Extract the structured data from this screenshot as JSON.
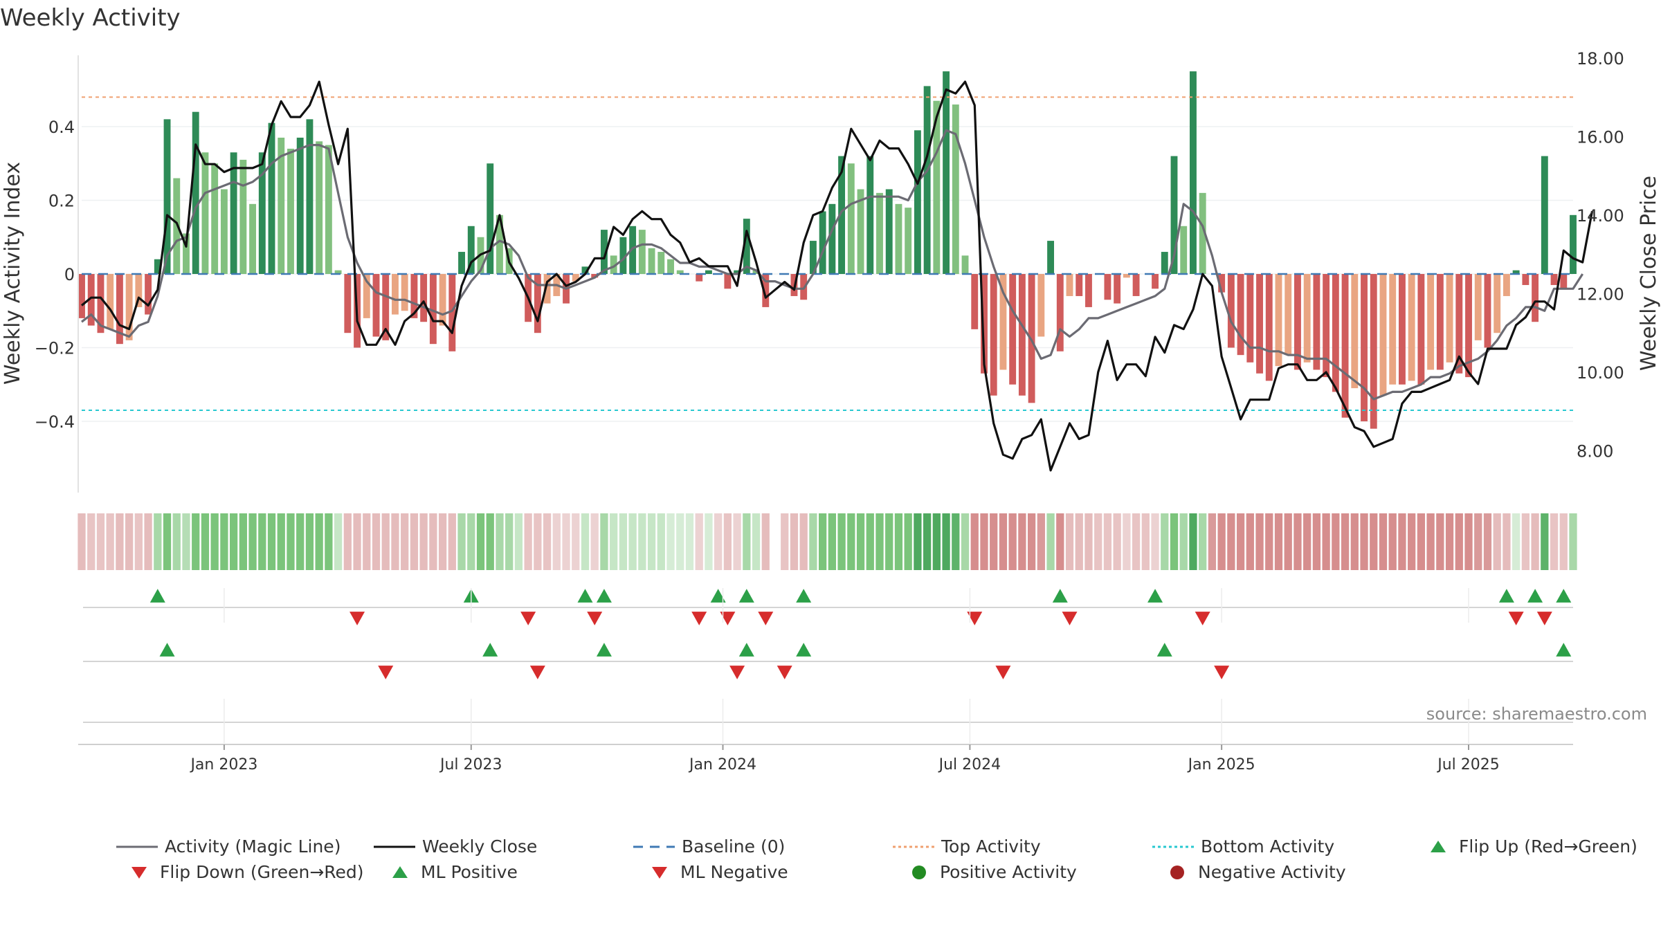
{
  "chart_data": {
    "type": "bar+line",
    "title": "Weekly Activity",
    "ylabel_left": "Weekly Activity Index",
    "ylabel_right": "Weekly Close Price",
    "source": "source: sharemaestro.com",
    "ylim_left": [
      -0.59,
      0.59
    ],
    "ylim_right": [
      6.8,
      18.0
    ],
    "yticks_left": [
      {
        "v": 0.4,
        "label": "0.4"
      },
      {
        "v": 0.2,
        "label": "0.2"
      },
      {
        "v": 0,
        "label": "0"
      },
      {
        "v": -0.2,
        "label": "−0.2"
      },
      {
        "v": -0.4,
        "label": "−0.4"
      }
    ],
    "yticks_right": [
      {
        "v": 18,
        "label": "18.00"
      },
      {
        "v": 16,
        "label": "16.00"
      },
      {
        "v": 14,
        "label": "14.00"
      },
      {
        "v": 12,
        "label": "12.00"
      },
      {
        "v": 10,
        "label": "10.00"
      },
      {
        "v": 8,
        "label": "8.00"
      }
    ],
    "x_range_weeks": [
      0,
      157
    ],
    "xticks": [
      {
        "w": 15,
        "label": "Jan 2023"
      },
      {
        "w": 41,
        "label": "Jul 2023"
      },
      {
        "w": 67.5,
        "label": "Jan 2024"
      },
      {
        "w": 93.5,
        "label": "Jul 2024"
      },
      {
        "w": 120,
        "label": "Jan 2025"
      },
      {
        "w": 146,
        "label": "Jul 2025"
      }
    ],
    "top_activity": 0.48,
    "bottom_activity": -0.37,
    "baseline": 0,
    "activity_values": [
      -0.12,
      -0.14,
      -0.16,
      -0.15,
      -0.19,
      -0.18,
      -0.09,
      -0.11,
      0.04,
      0.42,
      0.26,
      0.11,
      0.44,
      0.33,
      0.3,
      0.23,
      0.33,
      0.31,
      0.19,
      0.33,
      0.41,
      0.37,
      0.34,
      0.37,
      0.42,
      0.36,
      0.35,
      0.01,
      -0.16,
      -0.2,
      -0.12,
      -0.17,
      -0.18,
      -0.11,
      -0.1,
      -0.12,
      -0.13,
      -0.19,
      -0.14,
      -0.21,
      0.06,
      0.13,
      0.1,
      0.3,
      0.16,
      0.07,
      0.0,
      -0.13,
      -0.16,
      -0.08,
      -0.06,
      -0.08,
      -0.02,
      0.02,
      -0.01,
      0.12,
      0.05,
      0.1,
      0.13,
      0.12,
      0.07,
      0.06,
      0.04,
      0.01,
      0.0,
      -0.02,
      0.01,
      0.0,
      -0.04,
      0.01,
      0.15,
      0.01,
      -0.09,
      0.0,
      0.0,
      -0.06,
      -0.07,
      0.09,
      0.17,
      0.19,
      0.32,
      0.3,
      0.23,
      0.32,
      0.22,
      0.23,
      0.19,
      0.18,
      0.39,
      0.51,
      0.47,
      0.55,
      0.46,
      0.05,
      -0.15,
      -0.27,
      -0.33,
      -0.26,
      -0.3,
      -0.33,
      -0.35,
      -0.17,
      0.09,
      -0.21,
      -0.06,
      -0.06,
      -0.09,
      0.0,
      -0.07,
      -0.08,
      -0.01,
      -0.06,
      0.0,
      -0.04,
      0.06,
      0.32,
      0.13,
      0.55,
      0.22,
      0.0,
      -0.05,
      -0.2,
      -0.22,
      -0.24,
      -0.27,
      -0.29,
      -0.25,
      -0.22,
      -0.26,
      -0.24,
      -0.26,
      -0.28,
      -0.32,
      -0.39,
      -0.31,
      -0.4,
      -0.42,
      -0.33,
      -0.3,
      -0.3,
      -0.29,
      -0.3,
      -0.26,
      -0.26,
      -0.24,
      -0.27,
      -0.28,
      -0.18,
      -0.2,
      -0.16,
      -0.06,
      0.01,
      -0.03,
      -0.13,
      0.32,
      -0.03,
      -0.04,
      0.16
    ],
    "magic_line": [
      -0.13,
      -0.11,
      -0.14,
      -0.15,
      -0.16,
      -0.17,
      -0.14,
      -0.13,
      -0.06,
      0.05,
      0.09,
      0.1,
      0.18,
      0.22,
      0.23,
      0.24,
      0.25,
      0.24,
      0.25,
      0.27,
      0.3,
      0.32,
      0.33,
      0.34,
      0.35,
      0.35,
      0.34,
      0.22,
      0.1,
      0.03,
      -0.02,
      -0.05,
      -0.06,
      -0.07,
      -0.07,
      -0.08,
      -0.09,
      -0.1,
      -0.11,
      -0.1,
      -0.06,
      -0.02,
      0.01,
      0.07,
      0.09,
      0.08,
      0.05,
      -0.01,
      -0.03,
      -0.03,
      -0.03,
      -0.04,
      -0.03,
      -0.02,
      -0.01,
      0.01,
      0.02,
      0.04,
      0.07,
      0.08,
      0.08,
      0.07,
      0.05,
      0.03,
      0.03,
      0.02,
      0.02,
      0.01,
      0.0,
      0.0,
      0.02,
      0.01,
      -0.02,
      -0.02,
      -0.03,
      -0.04,
      -0.04,
      0.0,
      0.06,
      0.12,
      0.17,
      0.19,
      0.2,
      0.21,
      0.21,
      0.21,
      0.21,
      0.2,
      0.25,
      0.28,
      0.33,
      0.39,
      0.38,
      0.3,
      0.2,
      0.1,
      0.02,
      -0.05,
      -0.1,
      -0.14,
      -0.18,
      -0.23,
      -0.22,
      -0.15,
      -0.17,
      -0.15,
      -0.12,
      -0.12,
      -0.11,
      -0.1,
      -0.09,
      -0.08,
      -0.07,
      -0.06,
      -0.04,
      0.05,
      0.19,
      0.17,
      0.13,
      0.05,
      -0.05,
      -0.13,
      -0.17,
      -0.2,
      -0.2,
      -0.21,
      -0.21,
      -0.22,
      -0.22,
      -0.23,
      -0.23,
      -0.23,
      -0.25,
      -0.27,
      -0.29,
      -0.31,
      -0.34,
      -0.33,
      -0.32,
      -0.32,
      -0.31,
      -0.3,
      -0.28,
      -0.28,
      -0.27,
      -0.25,
      -0.24,
      -0.23,
      -0.21,
      -0.18,
      -0.14,
      -0.12,
      -0.09,
      -0.09,
      -0.1,
      -0.04,
      -0.04,
      -0.04,
      0.0
    ],
    "weekly_close": [
      11.7,
      11.9,
      11.9,
      11.6,
      11.2,
      11.1,
      11.9,
      11.7,
      12.1,
      14.0,
      13.8,
      13.2,
      15.8,
      15.3,
      15.3,
      15.1,
      15.2,
      15.2,
      15.2,
      15.3,
      16.3,
      16.9,
      16.5,
      16.5,
      16.8,
      17.4,
      16.3,
      15.3,
      16.2,
      11.3,
      10.7,
      10.7,
      11.1,
      10.7,
      11.3,
      11.5,
      11.8,
      11.3,
      11.3,
      11.0,
      12.2,
      12.8,
      13.0,
      13.1,
      14.0,
      12.8,
      12.4,
      11.9,
      11.3,
      12.3,
      12.5,
      12.2,
      12.3,
      12.5,
      12.9,
      12.9,
      13.7,
      13.5,
      13.9,
      14.1,
      13.9,
      13.9,
      13.5,
      13.3,
      12.8,
      12.9,
      12.7,
      12.7,
      12.7,
      12.2,
      13.6,
      12.8,
      11.9,
      12.1,
      12.3,
      12.1,
      13.3,
      14.0,
      14.1,
      14.7,
      15.1,
      16.2,
      15.8,
      15.4,
      15.9,
      15.7,
      15.7,
      15.3,
      14.8,
      15.5,
      16.5,
      17.2,
      17.1,
      17.4,
      16.8,
      10.2,
      8.7,
      7.9,
      7.8,
      8.3,
      8.4,
      8.8,
      7.5,
      8.1,
      8.7,
      8.3,
      8.4,
      10.0,
      10.8,
      9.8,
      10.2,
      10.2,
      9.9,
      10.9,
      10.5,
      11.2,
      11.1,
      11.6,
      12.5,
      12.2,
      10.4,
      9.6,
      8.8,
      9.3,
      9.3,
      9.3,
      10.1,
      10.2,
      10.2,
      9.8,
      9.8,
      10.0,
      9.6,
      9.1,
      8.6,
      8.5,
      8.1,
      8.2,
      8.3,
      9.2,
      9.5,
      9.5,
      9.6,
      9.7,
      9.8,
      10.4,
      10.0,
      9.7,
      10.6,
      10.6,
      10.6,
      11.2,
      11.4,
      11.8,
      11.8,
      11.6,
      13.1,
      12.9,
      12.8,
      14.1
    ],
    "strip_colors": [
      "#e5bcbc",
      "#e8c4c4",
      "#e8c4c4",
      "#e8c4c4",
      "#e5bcbc",
      "#e5bcbc",
      "#e8c4c4",
      "#e5bcbc",
      "#a8d8a8",
      "#7bc47b",
      "#a8d8a8",
      "#b5ddb5",
      "#7bc47b",
      "#7bc47b",
      "#7bc47b",
      "#7bc47b",
      "#7bc47b",
      "#7bc47b",
      "#7bc47b",
      "#7bc47b",
      "#7bc47b",
      "#7bc47b",
      "#7bc47b",
      "#7bc47b",
      "#7bc47b",
      "#7bc47b",
      "#7bc47b",
      "#c6e6c6",
      "#e5bcbc",
      "#e5bcbc",
      "#e5bcbc",
      "#e5bcbc",
      "#e5bcbc",
      "#e5bcbc",
      "#e5bcbc",
      "#e5bcbc",
      "#e5bcbc",
      "#e5bcbc",
      "#e5bcbc",
      "#e5bcbc",
      "#a8d8a8",
      "#a8d8a8",
      "#7bc47b",
      "#7bc47b",
      "#a8d8a8",
      "#a8d8a8",
      "#c6e6c6",
      "#e8c4c4",
      "#e8c4c4",
      "#e8c4c4",
      "#ecd2d2",
      "#ecd2d2",
      "#ecd2d2",
      "#c6e6c6",
      "#ecd2d2",
      "#a8d8a8",
      "#c6e6c6",
      "#c6e6c6",
      "#c6e6c6",
      "#c6e6c6",
      "#c6e6c6",
      "#c6e6c6",
      "#d6ecd6",
      "#d6ecd6",
      "#d6ecd6",
      "#ecd2d2",
      "#d6ecd6",
      "#ecd2d2",
      "#e8c4c4",
      "#ecd2d2",
      "#a8d8a8",
      "#c6e6c6",
      "#e5bcbc",
      "#ffffff",
      "#e8c4c4",
      "#e5bcbc",
      "#e5bcbc",
      "#a8d8a8",
      "#7bc47b",
      "#7bc47b",
      "#7bc47b",
      "#7bc47b",
      "#7bc47b",
      "#7bc47b",
      "#7bc47b",
      "#7bc47b",
      "#7bc47b",
      "#7bc47b",
      "#4fa95f",
      "#4fa95f",
      "#4fa95f",
      "#4fa95f",
      "#5db36a",
      "#a8d8a8",
      "#d68e8e",
      "#d68e8e",
      "#d68e8e",
      "#d68e8e",
      "#d68e8e",
      "#d68e8e",
      "#d68e8e",
      "#d99a9a",
      "#a8d8a8",
      "#d68e8e",
      "#e5bcbc",
      "#e5bcbc",
      "#e5bcbc",
      "#e8c4c4",
      "#e8c4c4",
      "#e8c4c4",
      "#ecd2d2",
      "#e8c4c4",
      "#e8c4c4",
      "#ecd2d2",
      "#a8d8a8",
      "#7bc47b",
      "#a8d8a8",
      "#4fa95f",
      "#a8d8a8",
      "#d99a9a",
      "#d68e8e",
      "#d68e8e",
      "#d68e8e",
      "#d68e8e",
      "#d68e8e",
      "#d68e8e",
      "#d68e8e",
      "#d68e8e",
      "#d68e8e",
      "#d68e8e",
      "#d68e8e",
      "#d68e8e",
      "#d68e8e",
      "#d68e8e",
      "#d68e8e",
      "#d68e8e",
      "#d68e8e",
      "#d68e8e",
      "#d68e8e",
      "#d68e8e",
      "#d68e8e",
      "#d68e8e",
      "#d68e8e",
      "#d68e8e",
      "#d68e8e",
      "#d68e8e",
      "#d68e8e",
      "#d99a9a",
      "#d99a9a",
      "#e5bcbc",
      "#e5bcbc",
      "#d6ecd6",
      "#e8c4c4",
      "#e5bcbc",
      "#5db36a",
      "#e8c4c4",
      "#e8c4c4",
      "#a8d8a8"
    ],
    "flip_up_weeks": [
      8,
      41,
      53,
      55,
      67,
      70,
      76,
      103,
      113,
      150,
      153,
      156
    ],
    "flip_down_weeks": [
      29,
      47,
      54,
      65,
      68,
      72,
      94,
      104,
      118,
      151,
      154
    ],
    "ml_positive_weeks": [
      9,
      43,
      55,
      70,
      76,
      114,
      156
    ],
    "ml_negative_weeks": [
      32,
      48,
      69,
      74,
      97,
      120
    ],
    "legend": [
      {
        "label": "Activity (Magic Line)",
        "symbol": "line",
        "color": "#6b6b73"
      },
      {
        "label": "Weekly Close",
        "symbol": "line",
        "color": "#111111"
      },
      {
        "label": "Baseline (0)",
        "symbol": "dash",
        "color": "#3f79b4"
      },
      {
        "label": "Top Activity",
        "symbol": "dot",
        "color": "#f0a070"
      },
      {
        "label": "Bottom Activity",
        "symbol": "dot",
        "color": "#28c8d0"
      },
      {
        "label": "Flip Up (Red→Green)",
        "symbol": "triangle-up",
        "color": "#2ca048"
      },
      {
        "label": "Flip Down (Green→Red)",
        "symbol": "triangle-down",
        "color": "#d62c2c"
      },
      {
        "label": "ML Positive",
        "symbol": "triangle-up",
        "color": "#2ca048"
      },
      {
        "label": "ML Negative",
        "symbol": "triangle-down",
        "color": "#d62c2c"
      },
      {
        "label": "Positive Activity",
        "symbol": "circle",
        "color": "#228b22"
      },
      {
        "label": "Negative Activity",
        "symbol": "circle",
        "color": "#a52222"
      }
    ]
  },
  "colors": {
    "pos_strong": "#2e8b57",
    "pos_light": "#82c07f",
    "neg_strong": "#d05c5c",
    "neg_light": "#e9a582",
    "flip_up": "#2ca048",
    "flip_down": "#d62c2c"
  }
}
